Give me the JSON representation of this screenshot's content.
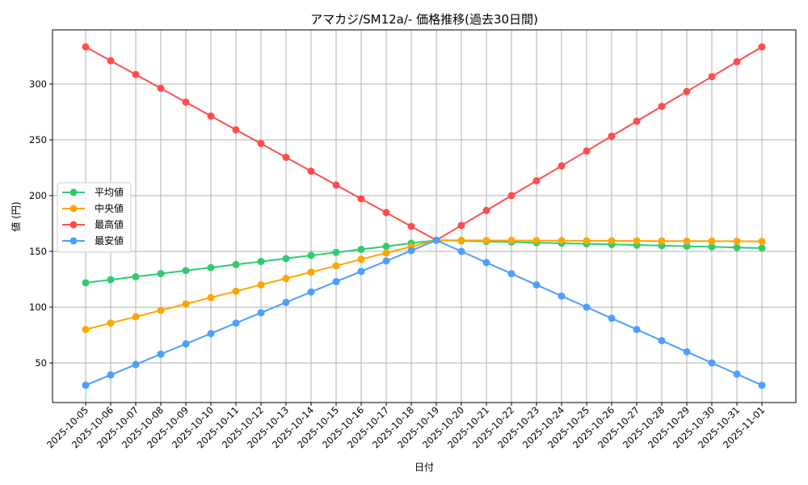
{
  "chart_data": {
    "type": "line",
    "title": "アマカジ/SM12a/- 価格推移(過去30日間)",
    "xlabel": "日付",
    "ylabel": "値 (円)",
    "ylim": [
      14.5,
      345
    ],
    "yticks": [
      50,
      100,
      150,
      200,
      250,
      300
    ],
    "grid": true,
    "legend_position": "center left",
    "x": [
      "2025-10-05",
      "2025-10-06",
      "2025-10-07",
      "2025-10-08",
      "2025-10-09",
      "2025-10-10",
      "2025-10-11",
      "2025-10-12",
      "2025-10-13",
      "2025-10-14",
      "2025-10-15",
      "2025-10-16",
      "2025-10-17",
      "2025-10-18",
      "2025-10-19",
      "2025-10-20",
      "2025-10-21",
      "2025-10-22",
      "2025-10-23",
      "2025-10-24",
      "2025-10-25",
      "2025-10-26",
      "2025-10-27",
      "2025-10-28",
      "2025-10-29",
      "2025-10-30",
      "2025-10-31",
      "2025-11-01"
    ],
    "series": [
      {
        "name": "平均値",
        "color": "#2ecc71",
        "values": [
          121.9,
          124.6,
          127.3,
          130.0,
          132.8,
          135.5,
          138.2,
          140.9,
          143.6,
          146.4,
          149.1,
          151.8,
          154.5,
          157.3,
          160.0,
          159.5,
          158.9,
          158.4,
          157.8,
          157.3,
          156.8,
          156.2,
          155.7,
          155.2,
          154.6,
          154.1,
          153.5,
          153.0
        ]
      },
      {
        "name": "中央値",
        "color": "#ffa500",
        "values": [
          80.0,
          85.7,
          91.4,
          97.1,
          102.9,
          108.6,
          114.3,
          120.0,
          125.7,
          131.4,
          137.1,
          142.9,
          148.6,
          154.3,
          160.0,
          159.9,
          159.8,
          159.8,
          159.7,
          159.6,
          159.5,
          159.5,
          159.4,
          159.3,
          159.2,
          159.2,
          159.1,
          159.0
        ]
      },
      {
        "name": "最高値",
        "color": "#ff4d4d",
        "values": [
          333.3,
          320.9,
          308.6,
          296.2,
          283.8,
          271.4,
          259.0,
          246.7,
          234.3,
          221.9,
          209.5,
          197.1,
          184.8,
          172.4,
          160.0,
          173.3,
          186.7,
          200.0,
          213.3,
          226.7,
          240.0,
          253.3,
          266.7,
          280.0,
          293.3,
          306.7,
          320.0,
          333.3
        ]
      },
      {
        "name": "最安値",
        "color": "#4d9eff",
        "values": [
          30.0,
          39.3,
          48.6,
          57.9,
          67.1,
          76.4,
          85.7,
          95.0,
          104.3,
          113.6,
          122.9,
          132.1,
          141.4,
          150.7,
          160.0,
          150.0,
          140.0,
          130.0,
          120.0,
          110.0,
          100.0,
          90.0,
          80.0,
          70.0,
          60.0,
          50.0,
          40.0,
          30.0
        ]
      }
    ]
  }
}
